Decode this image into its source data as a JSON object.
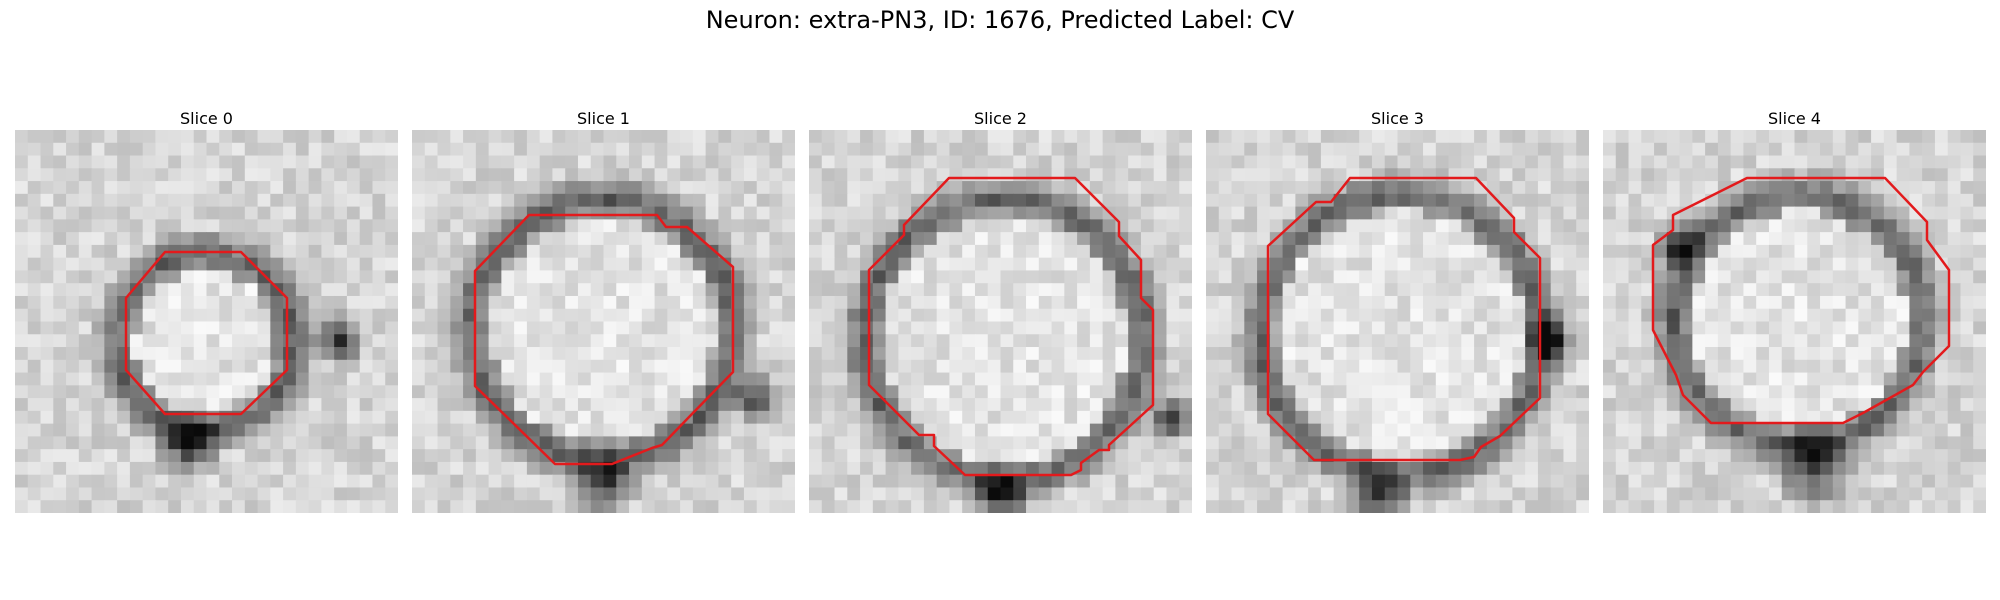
{
  "figure": {
    "title": "Neuron: extra-PN3, ID: 1676, Predicted Label: CV"
  },
  "panels": [
    {
      "title": "Slice 0"
    },
    {
      "title": "Slice 1"
    },
    {
      "title": "Slice 2"
    },
    {
      "title": "Slice 3"
    },
    {
      "title": "Slice 4"
    }
  ],
  "contour_color": "#e31a1c"
}
